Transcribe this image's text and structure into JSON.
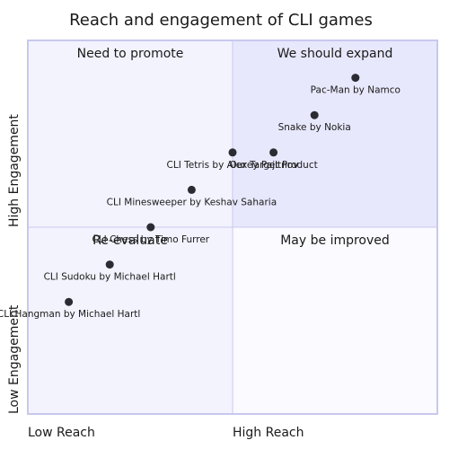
{
  "chart_data": {
    "type": "scatter",
    "title": "Reach and engagement of CLI games",
    "x_axis": {
      "low_label": "Low Reach",
      "high_label": "High Reach",
      "range": [
        0,
        1
      ]
    },
    "y_axis": {
      "low_label": "Low Engagement",
      "high_label": "High Engagement",
      "range": [
        0,
        1
      ]
    },
    "quadrants": {
      "top_left": "Need to promote",
      "top_right": "We should expand",
      "bottom_left": "Re-evaluate",
      "bottom_right": "May be improved"
    },
    "points": [
      {
        "label": "Pac-Man by Namco",
        "x": 0.8,
        "y": 0.9
      },
      {
        "label": "Snake by Nokia",
        "x": 0.7,
        "y": 0.8
      },
      {
        "label": "CLI Tetris by Alexey Pajitnov",
        "x": 0.5,
        "y": 0.7
      },
      {
        "label": "Our Target Product",
        "x": 0.6,
        "y": 0.7
      },
      {
        "label": "CLI Minesweeper by Keshav Saharia",
        "x": 0.4,
        "y": 0.6
      },
      {
        "label": "CLI Chess by Timo Furrer",
        "x": 0.3,
        "y": 0.5
      },
      {
        "label": "CLI Sudoku by Michael Hartl",
        "x": 0.2,
        "y": 0.4
      },
      {
        "label": "CLI Hangman by Michael Hartl",
        "x": 0.1,
        "y": 0.3
      }
    ],
    "colors": {
      "top_left": "#f3f3fe",
      "top_right": "#e8e8fd",
      "bottom_left": "#f3f3fe",
      "bottom_right": "#fafaff",
      "border": "#c8c8ee",
      "point": "#2b2b33"
    }
  }
}
